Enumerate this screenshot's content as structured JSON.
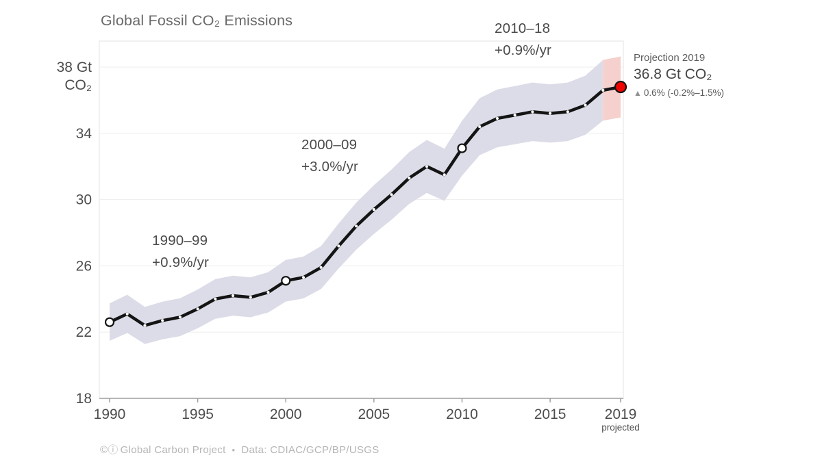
{
  "title": "Global Fossil CO₂ Emissions",
  "annotations": {
    "period1": {
      "line1": "1990–99",
      "line2": "+0.9%/yr"
    },
    "period2": {
      "line1": "2000–09",
      "line2": "+3.0%/yr"
    },
    "period3": {
      "line1": "2010–18",
      "line2": "+0.9%/yr"
    }
  },
  "projection": {
    "label": "Projection 2019",
    "value": "36.8 Gt CO₂",
    "change_icon": "▲",
    "change": "0.6% (-0.2%–1.5%)"
  },
  "xaxis": {
    "projected_label": "projected"
  },
  "footer": {
    "icons": "©ⓘ",
    "org": "Global Carbon Project",
    "separator": "•",
    "source": "Data: CDIAC/GCP/BP/USGS"
  },
  "chart_data": {
    "type": "line",
    "title": "Global Fossil CO₂ Emissions",
    "xlabel": "",
    "ylabel": "Gt CO₂",
    "xlim": [
      1990,
      2019
    ],
    "ylim": [
      18,
      38
    ],
    "grid": true,
    "legend_position": "none",
    "yticks": [
      18,
      22,
      26,
      30,
      34,
      38
    ],
    "ytick_labels": [
      "18",
      "22",
      "26",
      "30",
      "34",
      "38 Gt\nCO₂"
    ],
    "xticks": [
      1990,
      1995,
      2000,
      2005,
      2010,
      2015,
      2019
    ],
    "x": [
      1990,
      1991,
      1992,
      1993,
      1994,
      1995,
      1996,
      1997,
      1998,
      1999,
      2000,
      2001,
      2002,
      2003,
      2004,
      2005,
      2006,
      2007,
      2008,
      2009,
      2010,
      2011,
      2012,
      2013,
      2014,
      2015,
      2016,
      2017,
      2018,
      2019
    ],
    "series": [
      {
        "name": "Global fossil CO₂ emissions (Gt CO₂)",
        "values": [
          22.6,
          23.1,
          22.4,
          22.7,
          22.9,
          23.4,
          24.0,
          24.2,
          24.1,
          24.4,
          25.1,
          25.3,
          25.9,
          27.2,
          28.4,
          29.4,
          30.3,
          31.3,
          32.0,
          31.5,
          33.1,
          34.4,
          34.9,
          35.1,
          35.3,
          35.2,
          35.3,
          35.7,
          36.6,
          36.8
        ]
      }
    ],
    "uncertainty_band_pct": 5,
    "decade_markers": [
      1990,
      2000,
      2010
    ],
    "projection": {
      "year": 2019,
      "value": 36.8
    },
    "colors": {
      "line": "#141414",
      "band": "#dcdce8",
      "projection_band": "#f5d0cd",
      "projection_dot": "#ee0400",
      "text": "#4d4d4d",
      "axis": "#9e9e9e",
      "gridline": "#ededed",
      "footer": "#b5b5b5"
    }
  }
}
